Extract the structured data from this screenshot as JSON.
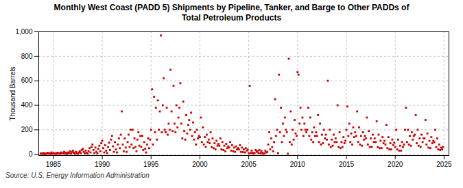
{
  "chart_data": {
    "type": "scatter",
    "title": "Monthly West Coast (PADD 5) Shipments by Pipeline, Tanker, and Barge to Other PADDs of\nTotal Petroleum Products",
    "ylabel": "Thousand Barrels",
    "caption": "Source: U.S. Energy Information Administration",
    "color": "#cc0000",
    "marker": "square",
    "grid": true,
    "xlim": [
      1983.5,
      2025.5
    ],
    "ylim": [
      -10,
      1000
    ],
    "xticks": [
      1985,
      1990,
      1995,
      2000,
      2005,
      2010,
      2015,
      2020,
      2025
    ],
    "yticks": [
      0,
      200,
      400,
      600,
      800,
      {
        "value": 1000,
        "label": "1,000"
      }
    ],
    "x": [
      1983.7,
      1983.8,
      1983.9,
      1984.0,
      1984.1,
      1984.2,
      1984.3,
      1984.4,
      1984.5,
      1984.6,
      1984.7,
      1984.8,
      1984.9,
      1985.0,
      1985.1,
      1985.2,
      1985.3,
      1985.4,
      1985.5,
      1985.6,
      1985.7,
      1985.8,
      1985.9,
      1986.0,
      1986.1,
      1986.2,
      1986.3,
      1986.4,
      1986.5,
      1986.6,
      1986.7,
      1986.8,
      1986.9,
      1987.0,
      1987.1,
      1987.2,
      1987.3,
      1987.4,
      1987.5,
      1987.6,
      1987.7,
      1987.8,
      1987.9,
      1988.0,
      1988.1,
      1988.2,
      1988.3,
      1988.4,
      1988.5,
      1988.6,
      1988.7,
      1988.8,
      1988.9,
      1989.0,
      1989.1,
      1989.2,
      1989.3,
      1989.4,
      1989.5,
      1989.6,
      1989.7,
      1989.8,
      1989.9,
      1990.0,
      1990.1,
      1990.2,
      1990.3,
      1990.4,
      1990.5,
      1990.6,
      1990.7,
      1990.8,
      1990.9,
      1991.0,
      1991.1,
      1991.2,
      1991.3,
      1991.4,
      1991.5,
      1991.6,
      1991.7,
      1991.8,
      1991.9,
      1992.0,
      1992.1,
      1992.2,
      1992.3,
      1992.4,
      1992.5,
      1992.6,
      1992.7,
      1992.8,
      1992.9,
      1993.0,
      1993.1,
      1993.2,
      1993.3,
      1993.4,
      1993.5,
      1993.6,
      1993.7,
      1993.8,
      1993.9,
      1994.0,
      1994.1,
      1994.2,
      1994.3,
      1994.4,
      1994.5,
      1994.6,
      1994.7,
      1994.8,
      1994.9,
      1995.0,
      1995.1,
      1995.2,
      1995.3,
      1995.4,
      1995.5,
      1995.6,
      1995.7,
      1995.8,
      1995.9,
      1996.0,
      1996.1,
      1996.2,
      1996.3,
      1996.4,
      1996.5,
      1996.6,
      1996.7,
      1996.8,
      1996.9,
      1997.0,
      1997.1,
      1997.2,
      1997.3,
      1997.4,
      1997.5,
      1997.6,
      1997.7,
      1997.8,
      1997.9,
      1998.0,
      1998.1,
      1998.2,
      1998.3,
      1998.4,
      1998.5,
      1998.6,
      1998.7,
      1998.8,
      1998.9,
      1999.0,
      1999.1,
      1999.2,
      1999.3,
      1999.4,
      1999.5,
      1999.6,
      1999.7,
      1999.8,
      1999.9,
      2000.0,
      2000.1,
      2000.2,
      2000.3,
      2000.4,
      2000.5,
      2000.6,
      2000.7,
      2000.8,
      2000.9,
      2001.0,
      2001.1,
      2001.2,
      2001.3,
      2001.4,
      2001.5,
      2001.6,
      2001.7,
      2001.8,
      2001.9,
      2002.0,
      2002.1,
      2002.2,
      2002.3,
      2002.4,
      2002.5,
      2002.6,
      2002.7,
      2002.8,
      2002.9,
      2003.0,
      2003.1,
      2003.2,
      2003.3,
      2003.4,
      2003.5,
      2003.6,
      2003.7,
      2003.8,
      2003.9,
      2004.0,
      2004.1,
      2004.2,
      2004.3,
      2004.4,
      2004.5,
      2004.6,
      2004.7,
      2004.8,
      2004.9,
      2005.0,
      2005.1,
      2005.2,
      2005.3,
      2005.4,
      2005.5,
      2005.6,
      2005.7,
      2005.8,
      2005.9,
      2006.0,
      2006.1,
      2006.2,
      2006.3,
      2006.4,
      2006.5,
      2006.6,
      2006.7,
      2006.8,
      2006.9,
      2007.0,
      2007.1,
      2007.2,
      2007.3,
      2007.4,
      2007.5,
      2007.6,
      2007.7,
      2007.8,
      2007.9,
      2008.0,
      2008.1,
      2008.2,
      2008.3,
      2008.4,
      2008.5,
      2008.6,
      2008.7,
      2008.8,
      2008.9,
      2009.0,
      2009.1,
      2009.2,
      2009.3,
      2009.4,
      2009.5,
      2009.6,
      2009.7,
      2009.8,
      2009.9,
      2010.0,
      2010.1,
      2010.2,
      2010.3,
      2010.4,
      2010.5,
      2010.6,
      2010.7,
      2010.8,
      2010.9,
      2011.0,
      2011.1,
      2011.2,
      2011.3,
      2011.4,
      2011.5,
      2011.6,
      2011.7,
      2011.8,
      2011.9,
      2012.0,
      2012.1,
      2012.2,
      2012.3,
      2012.4,
      2012.5,
      2012.6,
      2012.7,
      2012.8,
      2012.9,
      2013.0,
      2013.1,
      2013.2,
      2013.3,
      2013.4,
      2013.5,
      2013.6,
      2013.7,
      2013.8,
      2013.9,
      2014.0,
      2014.1,
      2014.2,
      2014.3,
      2014.4,
      2014.5,
      2014.6,
      2014.7,
      2014.8,
      2014.9,
      2015.0,
      2015.1,
      2015.2,
      2015.3,
      2015.4,
      2015.5,
      2015.6,
      2015.7,
      2015.8,
      2015.9,
      2016.0,
      2016.1,
      2016.2,
      2016.3,
      2016.4,
      2016.5,
      2016.6,
      2016.7,
      2016.8,
      2016.9,
      2017.0,
      2017.1,
      2017.2,
      2017.3,
      2017.4,
      2017.5,
      2017.6,
      2017.7,
      2017.8,
      2017.9,
      2018.0,
      2018.1,
      2018.2,
      2018.3,
      2018.4,
      2018.5,
      2018.6,
      2018.7,
      2018.8,
      2018.9,
      2019.0,
      2019.1,
      2019.2,
      2019.3,
      2019.4,
      2019.5,
      2019.6,
      2019.7,
      2019.8,
      2019.9,
      2020.0,
      2020.1,
      2020.2,
      2020.3,
      2020.4,
      2020.5,
      2020.6,
      2020.7,
      2020.8,
      2020.9,
      2021.0,
      2021.1,
      2021.2,
      2021.3,
      2021.4,
      2021.5,
      2021.6,
      2021.7,
      2021.8,
      2021.9,
      2022.0,
      2022.1,
      2022.2,
      2022.3,
      2022.4,
      2022.5,
      2022.6,
      2022.7,
      2022.8,
      2022.9,
      2023.0,
      2023.1,
      2023.2,
      2023.3,
      2023.4,
      2023.5,
      2023.6,
      2023.7,
      2023.8,
      2023.9,
      2024.0,
      2024.1,
      2024.2,
      2024.3,
      2024.4,
      2024.5,
      2024.6,
      2024.7,
      2024.8,
      2024.9
    ],
    "values": [
      5,
      8,
      3,
      10,
      2,
      7,
      4,
      12,
      6,
      9,
      3,
      15,
      5,
      10,
      5,
      8,
      3,
      12,
      6,
      9,
      4,
      15,
      7,
      8,
      20,
      5,
      12,
      3,
      15,
      8,
      25,
      6,
      18,
      30,
      12,
      5,
      20,
      8,
      3,
      15,
      25,
      10,
      35,
      45,
      20,
      8,
      30,
      12,
      5,
      25,
      50,
      15,
      60,
      80,
      35,
      10,
      55,
      20,
      8,
      45,
      70,
      25,
      90,
      110,
      50,
      15,
      75,
      30,
      10,
      60,
      95,
      35,
      120,
      150,
      65,
      20,
      100,
      40,
      15,
      80,
      130,
      50,
      160,
      350,
      80,
      25,
      130,
      55,
      20,
      100,
      160,
      60,
      200,
      80,
      200,
      50,
      130,
      60,
      25,
      120,
      180,
      70,
      150,
      60,
      150,
      35,
      100,
      45,
      15,
      80,
      130,
      50,
      120,
      200,
      530,
      80,
      470,
      180,
      380,
      120,
      440,
      200,
      350,
      970,
      180,
      400,
      620,
      200,
      180,
      380,
      160,
      250,
      200,
      690,
      350,
      190,
      560,
      250,
      180,
      400,
      220,
      300,
      380,
      580,
      250,
      130,
      430,
      190,
      120,
      320,
      170,
      240,
      280,
      200,
      340,
      150,
      260,
      120,
      180,
      80,
      200,
      130,
      150,
      140,
      300,
      100,
      220,
      80,
      140,
      60,
      160,
      100,
      120,
      90,
      180,
      60,
      130,
      50,
      90,
      40,
      110,
      70,
      85,
      70,
      130,
      40,
      100,
      35,
      70,
      25,
      85,
      50,
      65,
      55,
      100,
      30,
      75,
      25,
      55,
      20,
      65,
      40,
      50,
      40,
      75,
      20,
      55,
      18,
      40,
      15,
      50,
      30,
      38,
      8,
      560,
      10,
      30,
      12,
      5,
      10,
      35,
      20,
      25,
      10,
      35,
      8,
      25,
      10,
      5,
      8,
      30,
      15,
      20,
      80,
      180,
      40,
      130,
      60,
      25,
      100,
      450,
      150,
      200,
      10,
      650,
      180,
      380,
      100,
      250,
      150,
      300,
      200,
      180,
      5,
      780,
      100,
      350,
      80,
      200,
      120,
      280,
      170,
      150,
      670,
      650,
      250,
      380,
      200,
      300,
      150,
      250,
      200,
      180,
      200,
      380,
      150,
      300,
      120,
      180,
      100,
      220,
      150,
      180,
      150,
      320,
      100,
      250,
      80,
      160,
      90,
      200,
      130,
      160,
      120,
      600,
      80,
      200,
      60,
      120,
      70,
      160,
      100,
      130,
      100,
      400,
      60,
      180,
      50,
      100,
      60,
      140,
      90,
      110,
      200,
      390,
      150,
      250,
      100,
      170,
      80,
      220,
      140,
      180,
      150,
      350,
      100,
      220,
      80,
      150,
      70,
      180,
      120,
      150,
      130,
      300,
      80,
      190,
      60,
      130,
      60,
      160,
      100,
      130,
      100,
      270,
      60,
      160,
      50,
      110,
      50,
      140,
      90,
      110,
      80,
      240,
      50,
      140,
      40,
      90,
      40,
      120,
      75,
      95,
      60,
      200,
      40,
      120,
      30,
      70,
      30,
      100,
      60,
      80,
      200,
      380,
      100,
      200,
      80,
      150,
      70,
      180,
      120,
      150,
      160,
      320,
      90,
      200,
      70,
      130,
      60,
      160,
      100,
      130,
      130,
      280,
      80,
      170,
      55,
      110,
      50,
      140,
      90,
      110,
      100,
      200,
      60,
      130,
      40,
      80,
      35,
      55,
      40,
      60
    ]
  }
}
